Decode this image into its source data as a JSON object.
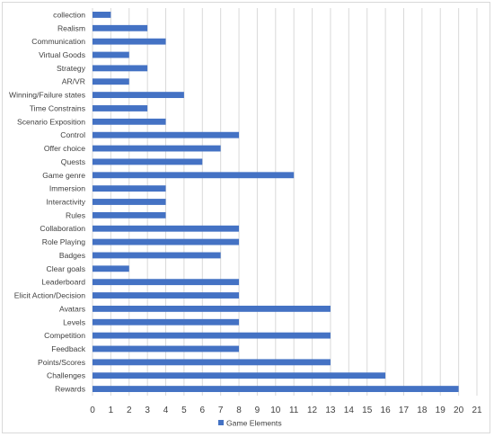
{
  "chart_data": {
    "type": "bar",
    "orientation": "horizontal",
    "categories": [
      "collection",
      "Realism",
      "Communication",
      "Virtual Goods",
      "Strategy",
      "AR/VR",
      "Winning/Failure states",
      "Time Constrains",
      "Scenario Exposition",
      "Control",
      "Offer choice",
      "Quests",
      "Game genre",
      "Immersion",
      "Interactivity",
      "Rules",
      "Collaboration",
      "Role Playing",
      "Badges",
      "Clear goals",
      "Leaderboard",
      "Elicit Action/Decision",
      "Avatars",
      "Levels",
      "Competition",
      "Feedback",
      "Points/Scores",
      "Challenges",
      "Rewards"
    ],
    "series": [
      {
        "name": "Game Elements",
        "values": [
          1,
          3,
          4,
          2,
          3,
          2,
          5,
          3,
          4,
          8,
          7,
          6,
          11,
          4,
          4,
          4,
          8,
          8,
          7,
          2,
          8,
          8,
          13,
          8,
          13,
          8,
          13,
          16,
          20
        ]
      }
    ],
    "xlim": [
      0,
      21
    ],
    "x_ticks": [
      "0",
      "1",
      "2",
      "3",
      "4",
      "5",
      "6",
      "7",
      "8",
      "9",
      "10",
      "11",
      "12",
      "13",
      "14",
      "15",
      "16",
      "17",
      "18",
      "19",
      "20",
      "21"
    ],
    "grid": "vertical",
    "legend": "bottom",
    "colors": {
      "bar": "#4472c4",
      "grid": "#d9d9d9",
      "text": "#404040"
    }
  }
}
